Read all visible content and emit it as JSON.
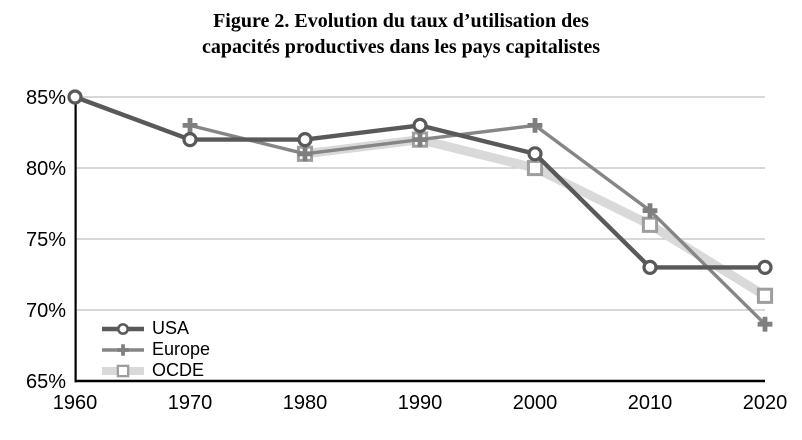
{
  "chart_data": {
    "type": "line",
    "title": "Figure 2. Evolution du taux d’utilisation des capacités productives dans les pays capitalistes",
    "title_lines": [
      "Figure 2. Evolution du taux d’utilisation des",
      "capacités productives dans les pays capitalistes"
    ],
    "x_labels": [
      "1960",
      "1970",
      "1980",
      "1990",
      "2000",
      "2010",
      "2020"
    ],
    "x_values": [
      1960,
      1970,
      1980,
      1990,
      2000,
      2010,
      2020
    ],
    "y_tick_labels": [
      "85%",
      "80%",
      "75%",
      "70%",
      "65%"
    ],
    "y_tick_values": [
      85,
      80,
      75,
      70,
      65
    ],
    "ylim": [
      65,
      85
    ],
    "grid": "horizontal",
    "legend_position": "inside-bottom-left",
    "series": [
      {
        "name": "USA",
        "marker": "circle",
        "color": "#595959",
        "marker_stroke": "#595959",
        "marker_fill": "#ffffff",
        "line_width": 4.4,
        "values": [
          85,
          82,
          82,
          83,
          81,
          73,
          73
        ]
      },
      {
        "name": "Europe",
        "marker": "plus",
        "color": "#868686",
        "marker_stroke": "#7f7f7f",
        "marker_fill": "#7f7f7f",
        "line_width": 3.4,
        "values": [
          null,
          83,
          81,
          82,
          83,
          77,
          69
        ]
      },
      {
        "name": "OCDE",
        "marker": "square",
        "color": "#D9D9D9",
        "marker_stroke": "#9e9e9e",
        "marker_fill": "#ffffff",
        "line_width": 9,
        "values": [
          null,
          null,
          81,
          82,
          80,
          76,
          71
        ]
      }
    ],
    "colors": {
      "gridline": "#c0c0c0",
      "axis": "#000000",
      "text": "#000000"
    }
  }
}
